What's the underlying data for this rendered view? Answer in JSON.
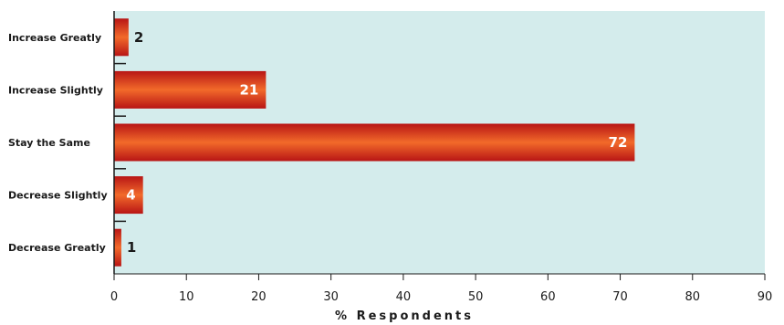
{
  "chart_data": {
    "type": "bar",
    "orientation": "horizontal",
    "categories": [
      "Increase Greatly",
      "Increase Slightly",
      "Stay the Same",
      "Decrease Slightly",
      "Decrease Greatly"
    ],
    "values": [
      2,
      21,
      72,
      4,
      1
    ],
    "title": "",
    "xlabel": "% Respondents",
    "ylabel": "",
    "xlim": [
      0,
      90
    ],
    "xticks": [
      0,
      10,
      20,
      30,
      40,
      50,
      60,
      70,
      80,
      90
    ],
    "grid": false,
    "legend": "none",
    "colors": {
      "plot_background": "#d4ecec",
      "bar_light": "#f26a2a",
      "bar_dark": "#c01a1a",
      "axis": "#1a1a1a"
    }
  }
}
